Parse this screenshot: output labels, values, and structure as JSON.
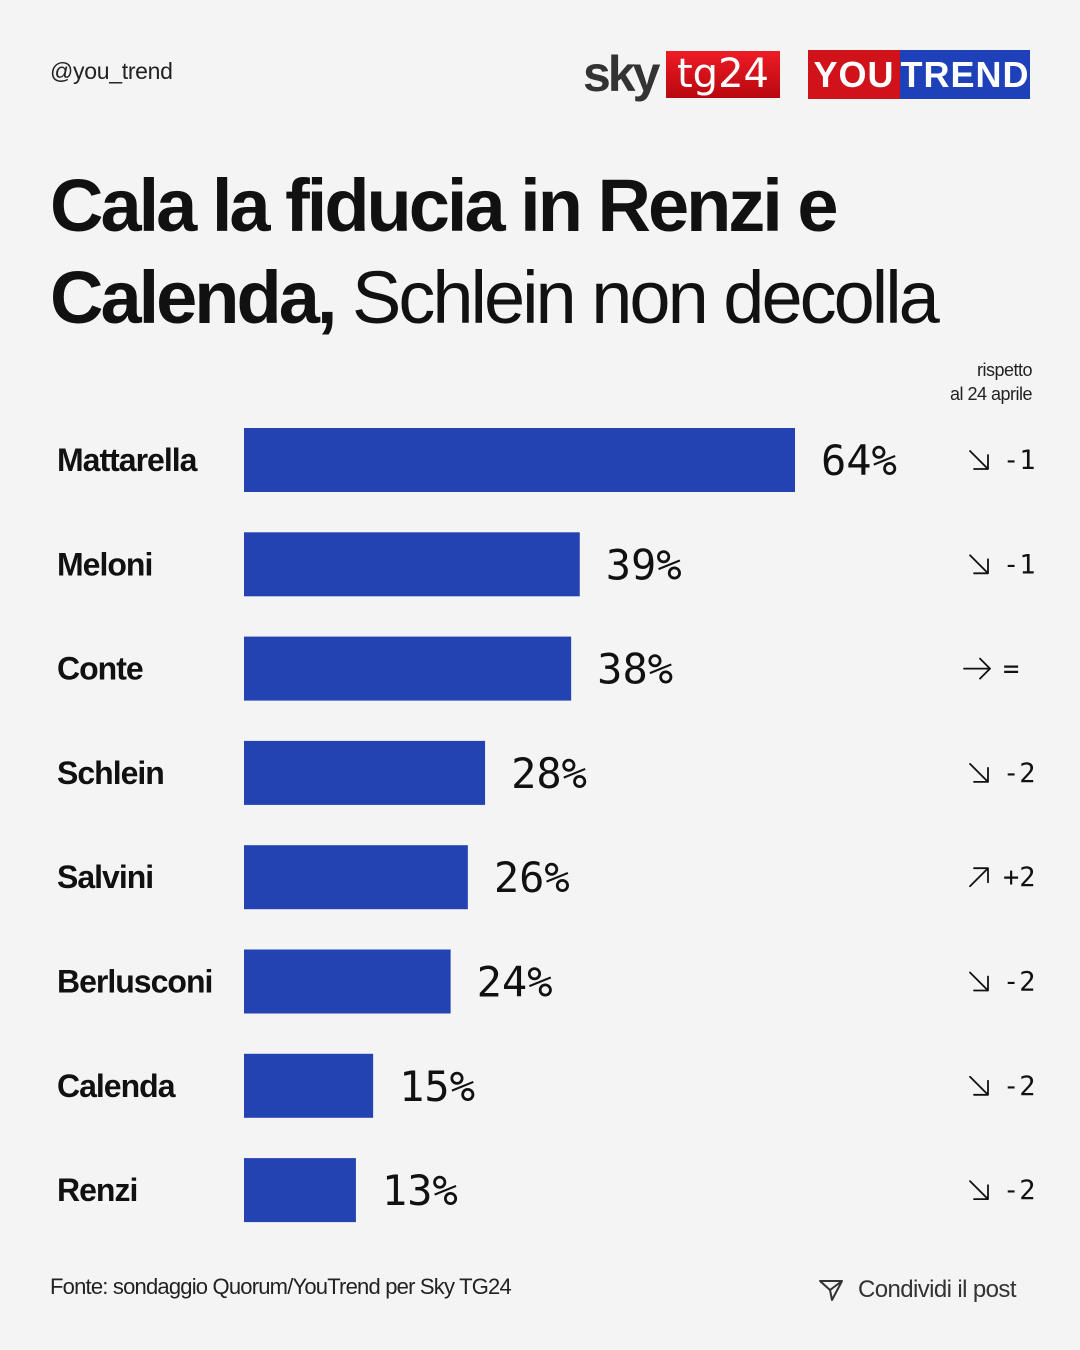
{
  "header": {
    "handle": "@you_trend",
    "logos": {
      "sky": "sky",
      "tg24": "tg24",
      "you": "YOU",
      "trend": "TREND"
    }
  },
  "title": {
    "bold": "Cala la fiducia in Renzi e Calenda,",
    "regular": "Schlein non decolla"
  },
  "comparison_note": {
    "line1": "rispetto",
    "line2": "al 24 aprile"
  },
  "chart_data": {
    "type": "bar",
    "orientation": "horizontal",
    "categories": [
      "Mattarella",
      "Meloni",
      "Conte",
      "Schlein",
      "Salvini",
      "Berlusconi",
      "Calenda",
      "Renzi"
    ],
    "values": [
      64,
      39,
      38,
      28,
      26,
      24,
      15,
      13
    ],
    "value_labels": [
      "64%",
      "39%",
      "38%",
      "28%",
      "26%",
      "24%",
      "15%",
      "13%"
    ],
    "change_direction": [
      "down",
      "down",
      "flat",
      "down",
      "up",
      "down",
      "down",
      "down"
    ],
    "change_labels": [
      "-1",
      "-1",
      "=",
      "-2",
      "+2",
      "-2",
      "-2",
      "-2"
    ],
    "bar_color": "#2443b3",
    "grid": false
  },
  "footer": {
    "source": "Fonte: sondaggio Quorum/YouTrend per Sky TG24",
    "share": "Condividi il post"
  },
  "icons": {
    "share": "send-icon",
    "down": "arrow-down-right-icon",
    "up": "arrow-up-right-icon",
    "flat": "arrow-right-icon"
  }
}
